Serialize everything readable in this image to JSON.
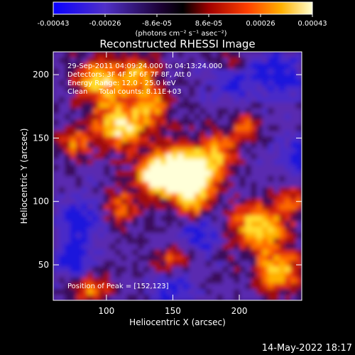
{
  "chart_data": {
    "type": "heatmap",
    "title": "Reconstructed RHESSI Image",
    "xlabel": "Heliocentric X (arcsec)",
    "ylabel": "Heliocentric Y (arcsec)",
    "xlim": [
      60,
      247
    ],
    "ylim": [
      22,
      218
    ],
    "x_ticks": [
      100,
      150,
      200
    ],
    "y_ticks": [
      50,
      100,
      150,
      200
    ],
    "x_tick_labels": [
      "100",
      "150",
      "200"
    ],
    "y_tick_labels": [
      "50",
      "100",
      "150",
      "200"
    ],
    "colorbar": {
      "colormap": "blue-purple-red-orange-yellow-white",
      "range": [
        -0.00043,
        0.00043
      ],
      "tick_labels": [
        "-0.00043",
        "-0.00026",
        "-8.6e-05",
        "8.6e-05",
        "0.00026",
        "0.00043"
      ],
      "units": "(photons cm⁻² s⁻¹ asec⁻²)"
    },
    "annotations": [
      "29-Sep-2011 04:09:24.000 to 04:13:24.000",
      "Detectors: 3F 4F 5F 6F 7F 8F, Att 0",
      "Energy Range: 12.0 - 25.0 keV",
      "Clean     Total counts: 8.11E+03"
    ],
    "peak_label": "Position of Peak = [152,123]",
    "peak": [
      152,
      123
    ],
    "colors": {
      "blue": "#1e18dc",
      "purple": "#5a2ab8",
      "dark_purple": "#2a0a50",
      "red": "#cc1010",
      "orange": "#ff8a00",
      "yellow": "#ffe020",
      "white": "#ffffff"
    }
  },
  "footer": {
    "date": "14-May-2022 18:17"
  }
}
